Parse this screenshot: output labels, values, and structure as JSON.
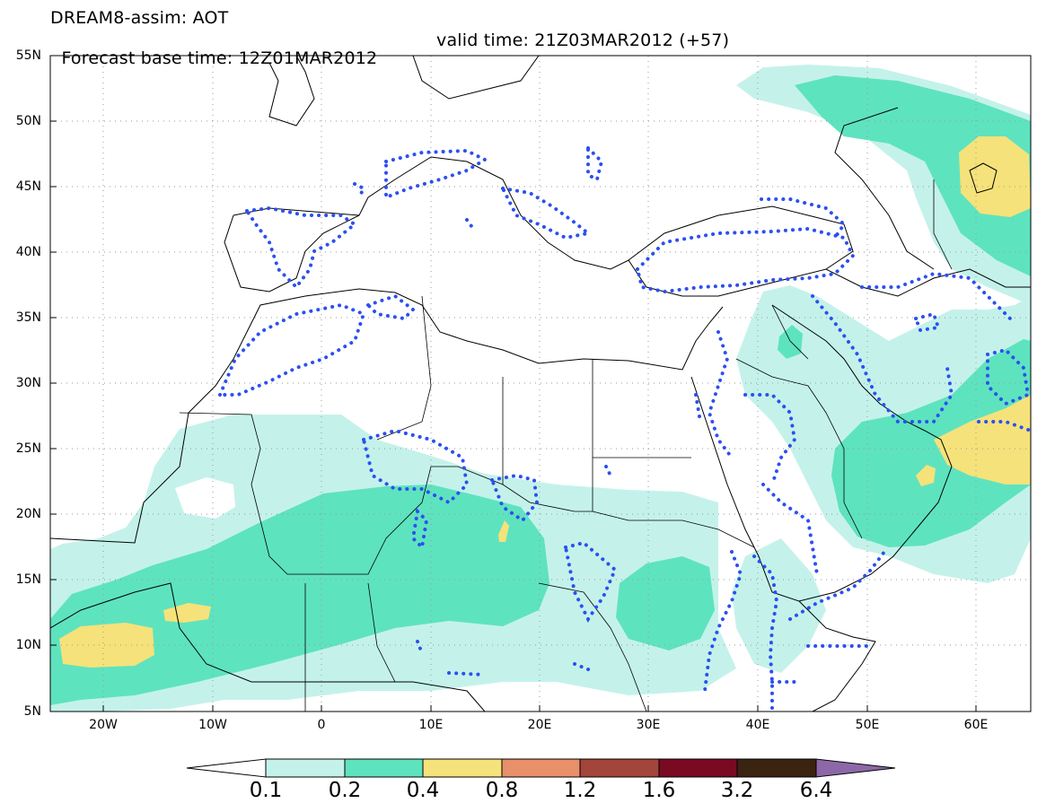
{
  "header": {
    "title": "DREAM8-assim: AOT",
    "base_time": "Forecast base time: 12Z01MAR2012",
    "valid_time": "valid time: 21Z03MAR2012 (+57)"
  },
  "map": {
    "lat_labels": [
      "55N",
      "50N",
      "45N",
      "40N",
      "35N",
      "30N",
      "25N",
      "20N",
      "15N",
      "10N",
      "5N"
    ],
    "lon_labels": [
      "20W",
      "10W",
      "0",
      "10E",
      "20E",
      "30E",
      "40E",
      "50E",
      "60E"
    ],
    "lat_range": [
      5,
      55
    ],
    "lon_range": [
      -25,
      65
    ],
    "grid": "dotted"
  },
  "legend": {
    "labels": [
      "0.1",
      "0.2",
      "0.4",
      "0.8",
      "1.2",
      "1.6",
      "3.2",
      "6.4"
    ],
    "colors": [
      "#ffffff",
      "#c4f2ea",
      "#5ee3bf",
      "#f5e27a",
      "#e8906a",
      "#a3453a",
      "#7a0a22",
      "#3b2312",
      "#8c68a8"
    ]
  }
}
